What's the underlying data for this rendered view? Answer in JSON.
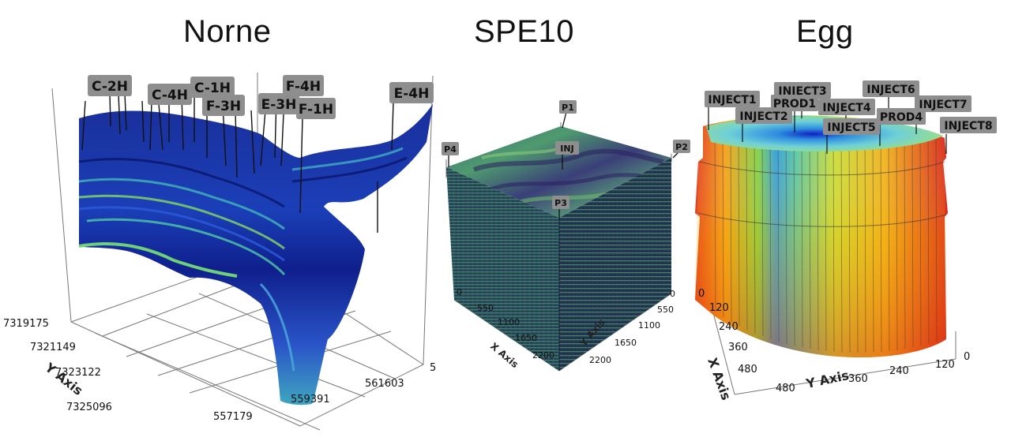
{
  "panels": {
    "norne": {
      "title": "Norne",
      "wells": [
        "C-2H",
        "C-4H",
        "C-1H",
        "F-3H",
        "E-3H",
        "F-4H",
        "F-1H",
        "E-4H"
      ],
      "y_ticks": [
        "7319175",
        "7321149",
        "7323122",
        "7325096"
      ],
      "y_axis_label": "Y Axis",
      "x_ticks": [
        "557179",
        "559391",
        "561603"
      ],
      "z_tick": "5"
    },
    "spe10": {
      "title": "SPE10",
      "wells": [
        "P1",
        "P2",
        "P3",
        "P4",
        "INJ"
      ],
      "x_ticks": [
        "550",
        "1100",
        "1650",
        "2200"
      ],
      "x_axis_label": "X Axis",
      "y_ticks": [
        "0",
        "550",
        "1100",
        "1650",
        "2200"
      ],
      "y_axis_label": "Y Axis",
      "z_tick": "0"
    },
    "egg": {
      "title": "Egg",
      "wells": [
        "INJECT1",
        "INJECT2",
        "INJECT3",
        "PROD1",
        "INJECT4",
        "INJECT5",
        "INJECT6",
        "PROD4",
        "INJECT7",
        "INJECT8"
      ],
      "left_ticks": [
        "0",
        "120",
        "240",
        "360",
        "480"
      ],
      "x_axis_label": "X Axis",
      "bottom_ticks": [
        "480",
        "360",
        "240",
        "120"
      ],
      "y_axis_label": "Y Axis",
      "right_tick": "0"
    }
  }
}
